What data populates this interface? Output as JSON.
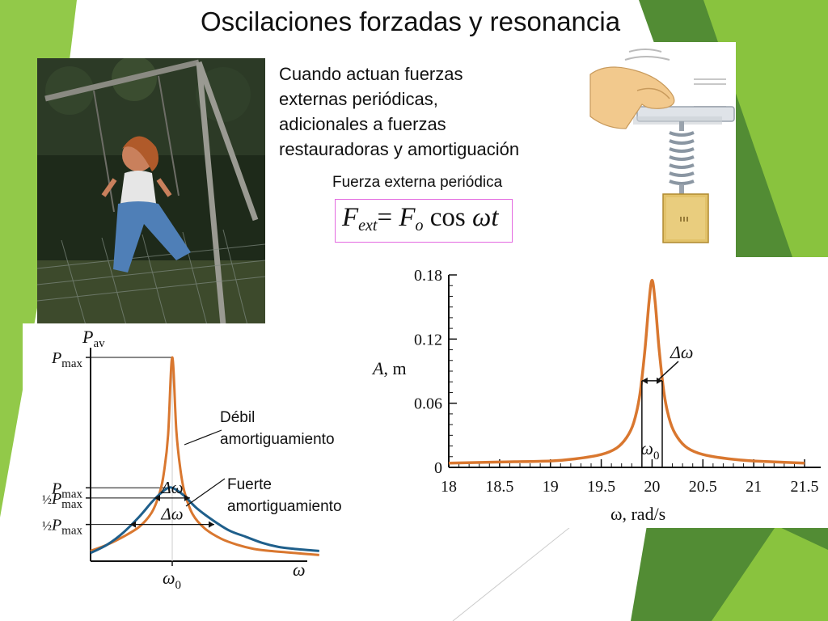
{
  "slide": {
    "title": "Oscilaciones forzadas y resonancia",
    "intro_lines": [
      "Cuando actuan fuerzas",
      "externas periódicas,",
      "adicionales a fuerzas",
      "restauradoras y amortiguación"
    ],
    "force_label": "Fuerza externa periódica",
    "formula": {
      "F1": "F",
      "sub1": "ext",
      "eq": "=",
      "F2": "F",
      "sub2": "o",
      "cos": "cos",
      "wt": "ωt"
    }
  },
  "colors": {
    "green_dark": "#3f7f1e",
    "green_light": "#8cc63f",
    "curve_orange": "#d9772f",
    "curve_blue": "#1f5f8b",
    "formula_border": "#e36ae0"
  },
  "chart_data": [
    {
      "type": "line",
      "title": "",
      "xlabel": "ω, rad/s",
      "ylabel": "A, m",
      "xlim": [
        18,
        21.5
      ],
      "ylim": [
        0,
        0.18
      ],
      "x_ticks": [
        "18",
        "18.5",
        "19",
        "19.5",
        "20",
        "20.5",
        "21",
        "21.5"
      ],
      "y_ticks": [
        "0",
        "0.06",
        "0.12",
        "0.18"
      ],
      "grid": false,
      "series": [
        {
          "x": [
            18,
            18.5,
            19,
            19.25,
            19.5,
            19.65,
            19.75,
            19.82,
            19.88,
            19.93,
            19.97,
            20,
            20.03,
            20.07,
            20.12,
            20.18,
            20.25,
            20.35,
            20.5,
            20.75,
            21,
            21.5
          ],
          "values": [
            0.004,
            0.005,
            0.006,
            0.008,
            0.012,
            0.018,
            0.028,
            0.042,
            0.068,
            0.11,
            0.155,
            0.175,
            0.155,
            0.11,
            0.068,
            0.042,
            0.028,
            0.018,
            0.012,
            0.008,
            0.006,
            0.004
          ]
        }
      ],
      "annotations": [
        {
          "text": "Δω",
          "x1": 19.9,
          "x2": 20.1,
          "y": 0.081
        },
        {
          "text": "ω",
          "sub": "0",
          "x": 20.0
        }
      ]
    },
    {
      "type": "line",
      "title": "",
      "xlabel": "ω",
      "ylabel": "P",
      "ylabel_sub": "av",
      "x_ticks": [
        {
          "text": "ω",
          "sub": "0",
          "x": 1.0
        }
      ],
      "y_ticks": [
        {
          "prefix": "",
          "text": "P",
          "sub": "max",
          "level": "strong_max"
        },
        {
          "prefix": "½",
          "text": "P",
          "sub": "max",
          "level": "strong_half"
        },
        {
          "prefix": "",
          "text": "P",
          "sub": "max",
          "level": "weak_max"
        },
        {
          "prefix": "½",
          "text": "P",
          "sub": "max",
          "level": "weak_half"
        }
      ],
      "series": [
        {
          "name": "Débil amortiguamiento",
          "label_lines": [
            "Débil",
            "amortiguamiento"
          ],
          "x": [
            0,
            0.2,
            0.4,
            0.6,
            0.75,
            0.85,
            0.9,
            0.95,
            1.0,
            1.05,
            1.1,
            1.15,
            1.25,
            1.4,
            1.6,
            1.8,
            2.0,
            2.2,
            2.5,
            2.8
          ],
          "values": [
            0.05,
            0.08,
            0.12,
            0.17,
            0.24,
            0.34,
            0.44,
            0.62,
            1.0,
            0.64,
            0.45,
            0.34,
            0.23,
            0.16,
            0.11,
            0.08,
            0.06,
            0.05,
            0.04,
            0.03
          ]
        },
        {
          "name": "Fuerte amortiguamiento",
          "label_lines": [
            "Fuerte",
            "amortiguamiento"
          ],
          "x": [
            0,
            0.2,
            0.4,
            0.6,
            0.75,
            0.85,
            0.95,
            1.0,
            1.05,
            1.15,
            1.3,
            1.5,
            1.7,
            1.9,
            2.1,
            2.3,
            2.5,
            2.8
          ],
          "values": [
            0.04,
            0.08,
            0.14,
            0.22,
            0.29,
            0.33,
            0.36,
            0.36,
            0.35,
            0.32,
            0.26,
            0.2,
            0.15,
            0.12,
            0.09,
            0.07,
            0.06,
            0.05
          ]
        }
      ],
      "annotations": [
        {
          "text": "Δω",
          "level": "strong_half"
        },
        {
          "text": "Δω",
          "level": "weak_half"
        }
      ]
    }
  ]
}
